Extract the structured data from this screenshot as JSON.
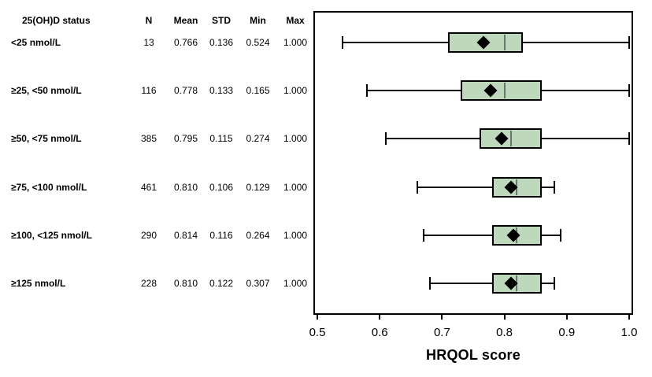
{
  "table": {
    "header": {
      "status": "25(OH)D status",
      "n": "N",
      "mean": "Mean",
      "std": "STD",
      "min": "Min",
      "max": "Max"
    },
    "rows": [
      {
        "label": "<25 nmol/L",
        "n": "13",
        "mean": "0.766",
        "std": "0.136",
        "min": "0.524",
        "max": "1.000"
      },
      {
        "label": "≥25, <50 nmol/L",
        "n": "116",
        "mean": "0.778",
        "std": "0.133",
        "min": "0.165",
        "max": "1.000"
      },
      {
        "label": "≥50, <75 nmol/L",
        "n": "385",
        "mean": "0.795",
        "std": "0.115",
        "min": "0.274",
        "max": "1.000"
      },
      {
        "label": "≥75, <100 nmol/L",
        "n": "461",
        "mean": "0.810",
        "std": "0.106",
        "min": "0.129",
        "max": "1.000"
      },
      {
        "label": "≥100, <125 nmol/L",
        "n": "290",
        "mean": "0.814",
        "std": "0.116",
        "min": "0.264",
        "max": "1.000"
      },
      {
        "label": "≥125 nmol/L",
        "n": "228",
        "mean": "0.810",
        "std": "0.122",
        "min": "0.307",
        "max": "1.000"
      }
    ]
  },
  "chart_data": {
    "type": "boxplot",
    "orientation": "horizontal",
    "xlabel": "HRQOL score",
    "xlim": [
      0.5,
      1.0
    ],
    "xticks": [
      0.5,
      0.6,
      0.7,
      0.8,
      0.9,
      1.0
    ],
    "xtick_labels": [
      "0.5",
      "0.6",
      "0.7",
      "0.8",
      "0.9",
      "1.0"
    ],
    "grid": false,
    "legend": false,
    "colors": {
      "box_fill": "#bed8bc",
      "box_border": "#000000",
      "median_line": "#66786a",
      "mean_marker": "#000000",
      "whisker": "#000000"
    },
    "groups": [
      {
        "label": "<25 nmol/L",
        "whisker_low": 0.54,
        "q1": 0.71,
        "median": 0.8,
        "q3": 0.83,
        "whisker_high": 1.0,
        "mean": 0.766
      },
      {
        "label": "≥25, <50 nmol/L",
        "whisker_low": 0.58,
        "q1": 0.73,
        "median": 0.8,
        "q3": 0.86,
        "whisker_high": 1.0,
        "mean": 0.778
      },
      {
        "label": "≥50, <75 nmol/L",
        "whisker_low": 0.61,
        "q1": 0.76,
        "median": 0.81,
        "q3": 0.86,
        "whisker_high": 1.0,
        "mean": 0.795
      },
      {
        "label": "≥75, <100 nmol/L",
        "whisker_low": 0.66,
        "q1": 0.78,
        "median": 0.82,
        "q3": 0.86,
        "whisker_high": 0.88,
        "mean": 0.81
      },
      {
        "label": "≥100, <125 nmol/L",
        "whisker_low": 0.67,
        "q1": 0.78,
        "median": 0.82,
        "q3": 0.86,
        "whisker_high": 0.89,
        "mean": 0.814
      },
      {
        "label": "≥125 nmol/L",
        "whisker_low": 0.68,
        "q1": 0.78,
        "median": 0.82,
        "q3": 0.86,
        "whisker_high": 0.88,
        "mean": 0.81
      }
    ]
  }
}
